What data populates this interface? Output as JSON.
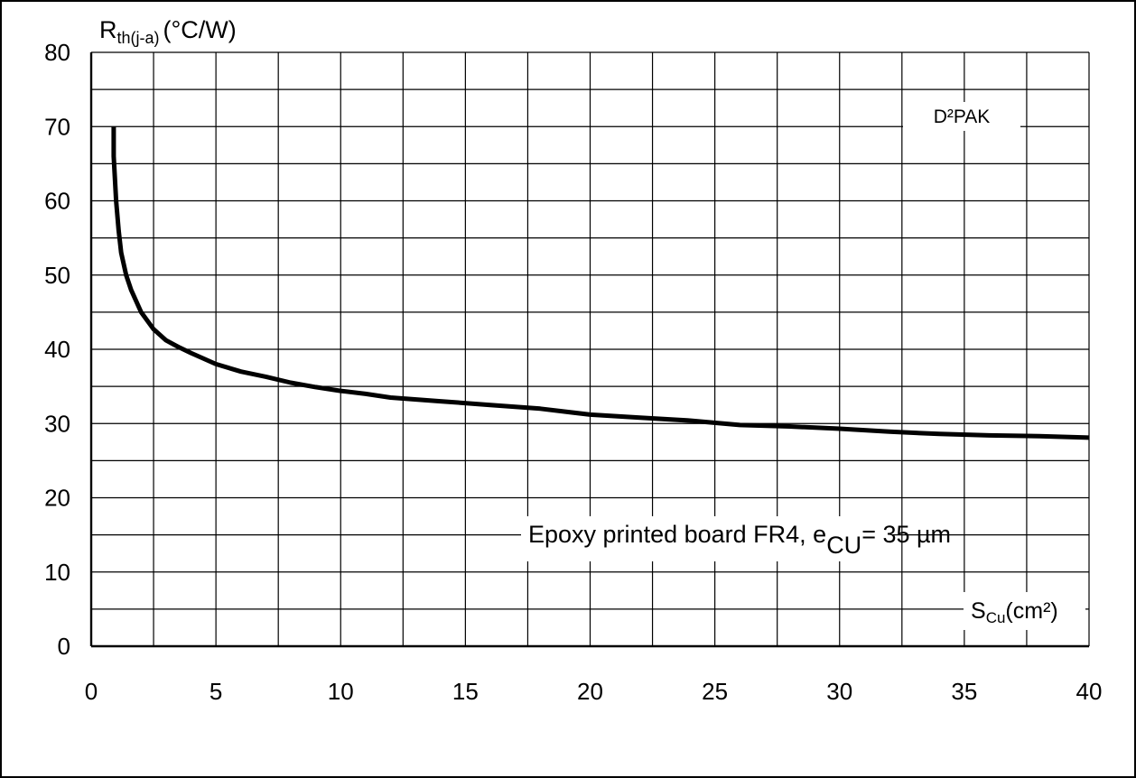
{
  "chart_data": {
    "type": "line",
    "ylabel_main": "R",
    "ylabel_sub": "th(j-a)",
    "ylabel_unit": "(°C/W)",
    "xlabel_main": "S",
    "xlabel_sub": "Cu",
    "xlabel_unit": "(cm²)",
    "package_label": "D²PAK",
    "board_text": "Epoxy printed board FR4, e",
    "board_sub": "CU",
    "board_value": "= 35 µm",
    "xlim": [
      0,
      40
    ],
    "ylim": [
      0,
      80
    ],
    "x_ticks": [
      0,
      5,
      10,
      15,
      20,
      25,
      30,
      35,
      40
    ],
    "y_ticks": [
      0,
      10,
      20,
      30,
      40,
      50,
      60,
      70,
      80
    ],
    "grid": true,
    "series": [
      {
        "x": [
          0.9,
          0.9,
          1.0,
          1.1,
          1.2,
          1.4,
          1.6,
          2.0,
          2.5,
          3.0,
          3.5,
          4.0,
          5.0,
          6.0,
          7.0,
          8.0,
          9.0,
          10.0,
          11.0,
          12.0,
          14.0,
          16.0,
          18.0,
          20.0,
          22.0,
          24.0,
          26.0,
          28.0,
          30.0,
          32.0,
          34.0,
          36.0,
          38.0,
          40.0
        ],
        "y": [
          70,
          66,
          60,
          56,
          53,
          50,
          48,
          45,
          42.7,
          41.2,
          40.3,
          39.5,
          38.0,
          37.0,
          36.3,
          35.5,
          34.9,
          34.4,
          34.0,
          33.5,
          33.0,
          32.5,
          32.0,
          31.2,
          30.8,
          30.4,
          29.8,
          29.6,
          29.3,
          28.9,
          28.6,
          28.4,
          28.3,
          28.1
        ]
      }
    ]
  }
}
